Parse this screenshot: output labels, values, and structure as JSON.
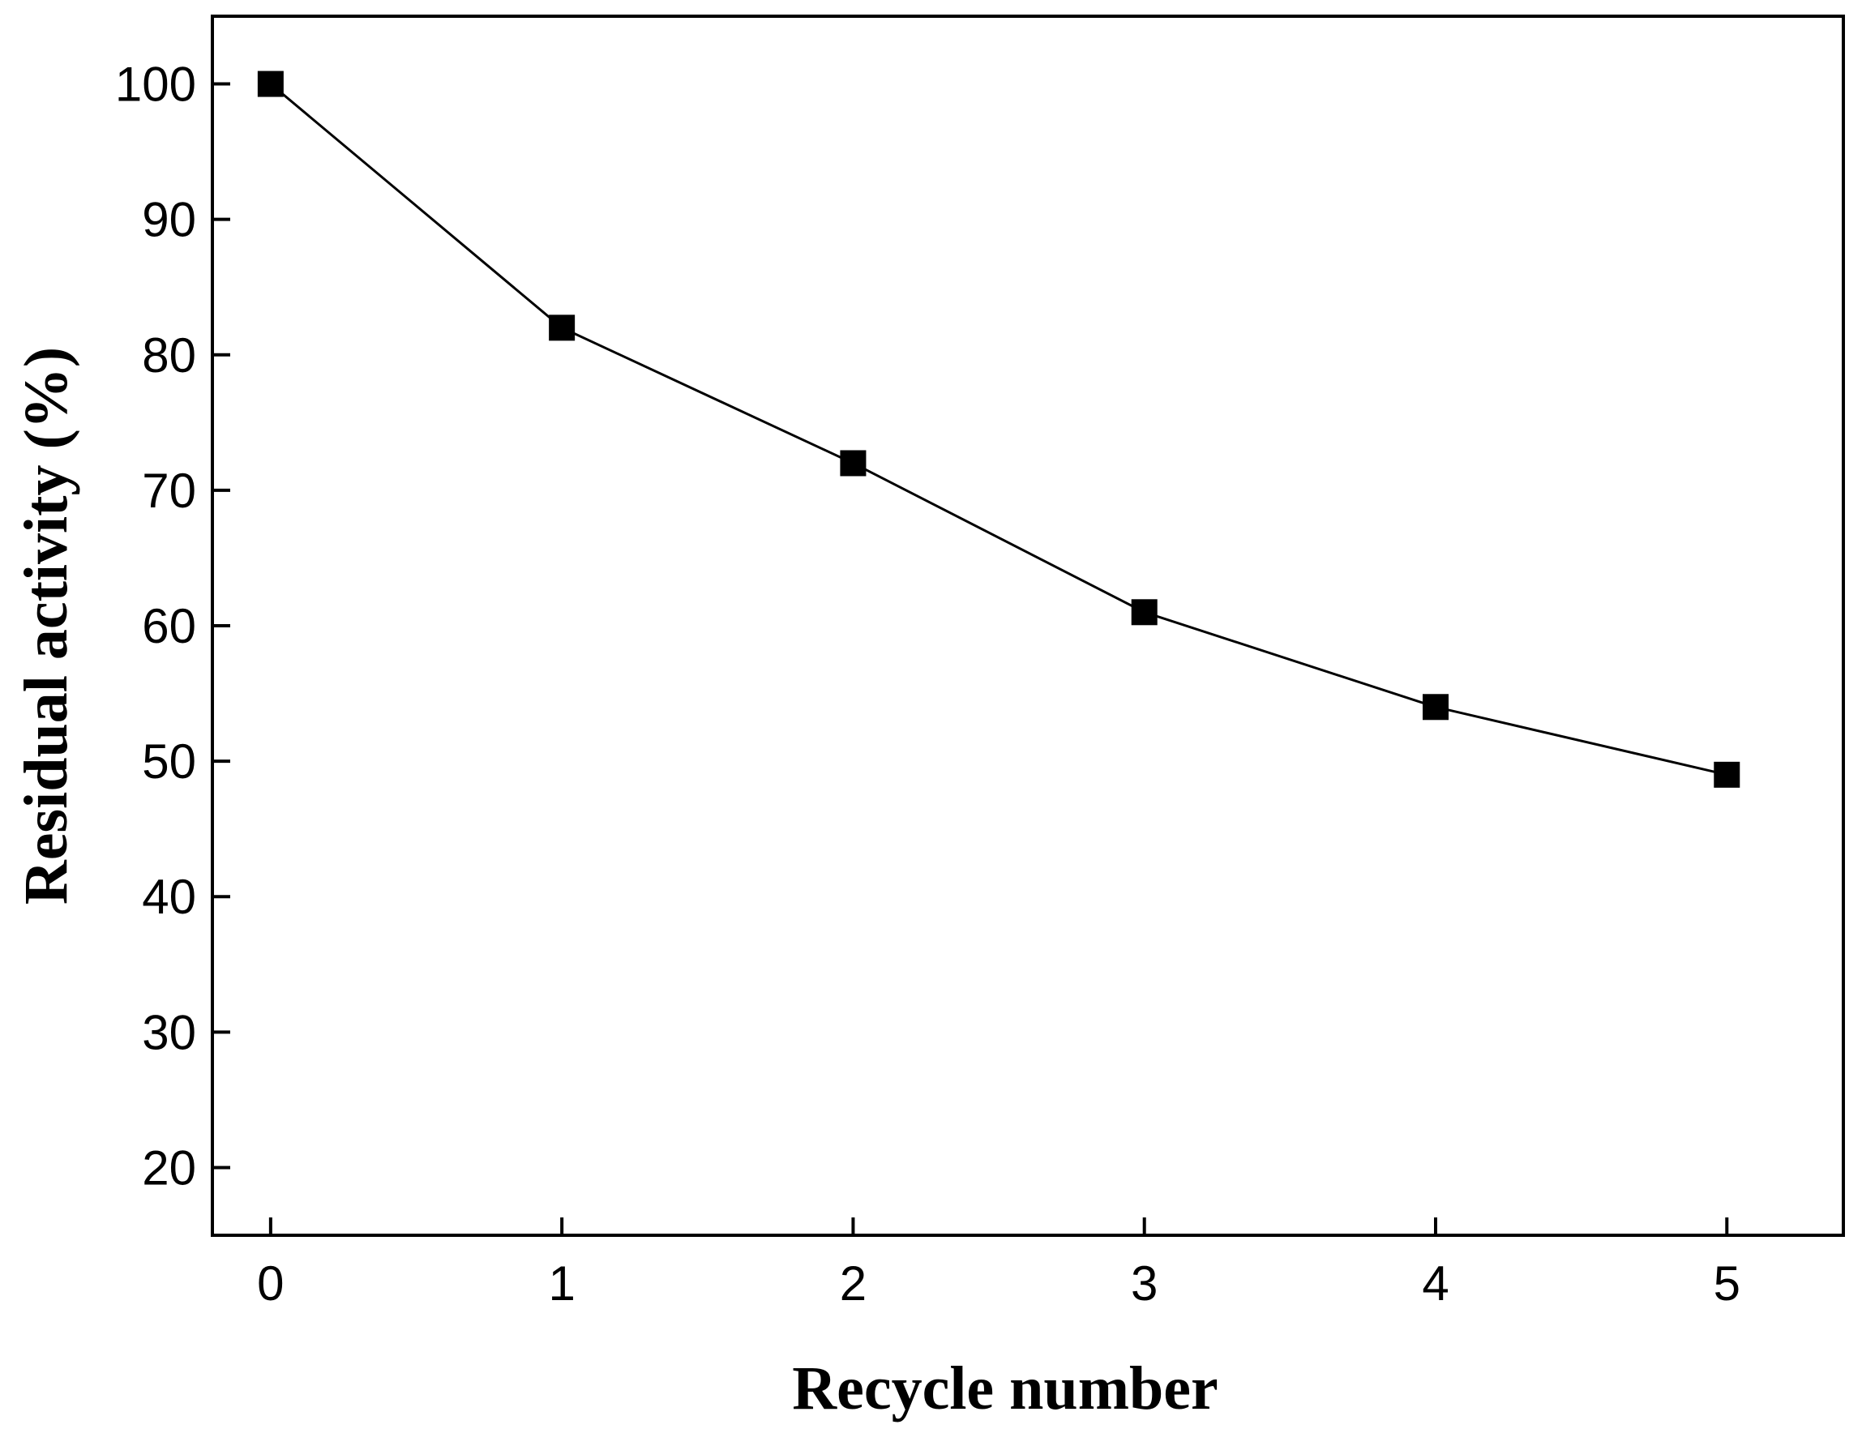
{
  "chart_data": {
    "type": "line",
    "title": "",
    "xlabel": "Recycle number",
    "ylabel": "Residual activity (%)",
    "x": [
      0,
      1,
      2,
      3,
      4,
      5
    ],
    "series": [
      {
        "values": [
          100,
          82,
          72,
          61,
          54,
          49
        ],
        "marker": "square",
        "color": "#000000"
      }
    ],
    "xlim": [
      -0.2,
      5.4
    ],
    "ylim": [
      15,
      105
    ],
    "xticks": [
      0,
      1,
      2,
      3,
      4,
      5
    ],
    "yticks": [
      20,
      30,
      40,
      50,
      60,
      70,
      80,
      90,
      100
    ],
    "grid": false,
    "legend": "none"
  }
}
